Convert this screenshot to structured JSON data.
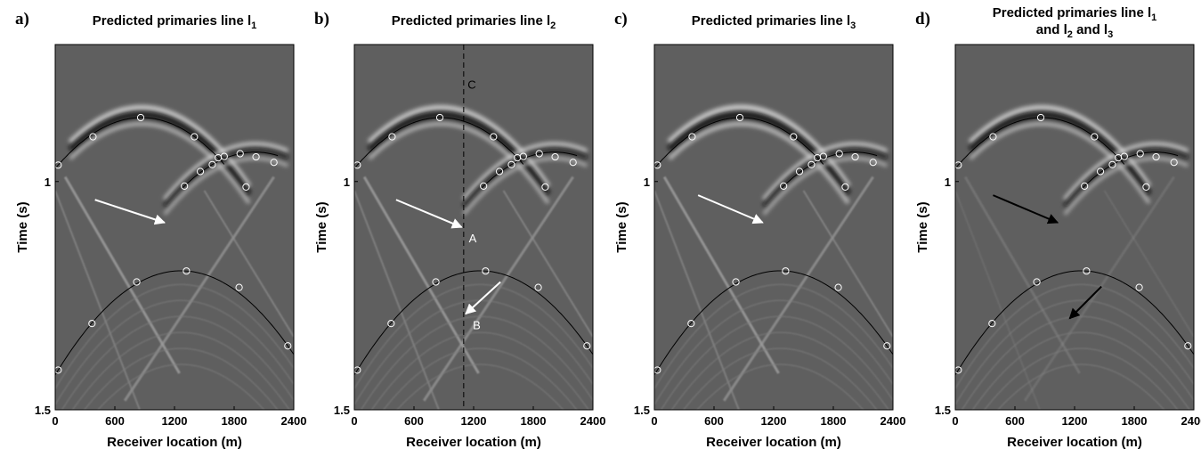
{
  "chart_data": [
    {
      "type": "seismic-section",
      "panel": "a)",
      "title": "Predicted primaries line l",
      "title_sub": "1",
      "xlabel": "Receiver location (m)",
      "ylabel": "Time (s)",
      "xticks": [
        0,
        600,
        1200,
        1800,
        2400
      ],
      "yticks": [
        1,
        1.5
      ],
      "xlim": [
        0,
        2400
      ],
      "ylim": [
        0.7,
        1.5
      ],
      "arrows": [
        {
          "color": "#ffffff",
          "from": [
            400,
            1.04
          ],
          "to": [
            1100,
            1.09
          ],
          "label": ""
        }
      ],
      "annotations": [],
      "dashed_line_x": null
    },
    {
      "type": "seismic-section",
      "panel": "b)",
      "title": "Predicted primaries line l",
      "title_sub": "2",
      "xlabel": "Receiver location (m)",
      "ylabel": "Time (s)",
      "xticks": [
        0,
        600,
        1200,
        1800,
        2400
      ],
      "yticks": [
        1,
        1.5
      ],
      "xlim": [
        0,
        2400
      ],
      "ylim": [
        0.7,
        1.5
      ],
      "arrows": [
        {
          "color": "#ffffff",
          "from": [
            420,
            1.04
          ],
          "to": [
            1080,
            1.1
          ],
          "label": "A"
        },
        {
          "color": "#ffffff",
          "from": [
            1470,
            1.22
          ],
          "to": [
            1120,
            1.29
          ],
          "label": "B"
        }
      ],
      "annotations": [
        {
          "text": "C",
          "x": 1140,
          "y": 0.797,
          "color": "#000000"
        }
      ],
      "dashed_line_x": 1100
    },
    {
      "type": "seismic-section",
      "panel": "c)",
      "title": "Predicted primaries line l",
      "title_sub": "3",
      "xlabel": "Receiver location (m)",
      "ylabel": "Time (s)",
      "xticks": [
        0,
        600,
        1200,
        1800,
        2400
      ],
      "yticks": [
        1,
        1.5
      ],
      "xlim": [
        0,
        2400
      ],
      "ylim": [
        0.7,
        1.5
      ],
      "arrows": [
        {
          "color": "#ffffff",
          "from": [
            440,
            1.03
          ],
          "to": [
            1090,
            1.09
          ],
          "label": ""
        }
      ],
      "annotations": [],
      "dashed_line_x": null
    },
    {
      "type": "seismic-section",
      "panel": "d)",
      "title": "Predicted primaries line l",
      "title_sub": "1",
      "title_line2": {
        "t1": "and l",
        "s1": "2",
        "t2": " and l",
        "s2": "3"
      },
      "xlabel": "Receiver location (m)",
      "ylabel": "Time (s)",
      "xticks": [
        0,
        600,
        1200,
        1800,
        2400
      ],
      "yticks": [
        1,
        1.5
      ],
      "xlim": [
        0,
        2400
      ],
      "ylim": [
        0.7,
        1.5
      ],
      "arrows": [
        {
          "color": "#000000",
          "from": [
            380,
            1.03
          ],
          "to": [
            1030,
            1.09
          ],
          "label": ""
        },
        {
          "color": "#000000",
          "from": [
            1470,
            1.23
          ],
          "to": [
            1150,
            1.3
          ],
          "label": ""
        }
      ],
      "annotations": [],
      "dashed_line_x": null
    }
  ],
  "picks": {
    "event_upper_left": [
      [
        30,
        0.964
      ],
      [
        380,
        0.902
      ],
      [
        860,
        0.86
      ],
      [
        1400,
        0.902
      ],
      [
        1640,
        0.948
      ]
    ],
    "event_upper_right": [
      [
        1300,
        1.01
      ],
      [
        1460,
        0.978
      ],
      [
        1700,
        0.945
      ],
      [
        1860,
        0.939
      ],
      [
        2020,
        0.946
      ],
      [
        2200,
        0.958
      ],
      [
        1580,
        0.963
      ],
      [
        1920,
        1.012
      ]
    ],
    "event_lower": [
      [
        30,
        1.413
      ],
      [
        370,
        1.311
      ],
      [
        820,
        1.22
      ],
      [
        1320,
        1.196
      ],
      [
        1850,
        1.232
      ],
      [
        2340,
        1.36
      ]
    ]
  },
  "colors": {
    "background_gray": "#5f5f5f",
    "curve": "#000000",
    "pick_circle": "#ffffff"
  }
}
